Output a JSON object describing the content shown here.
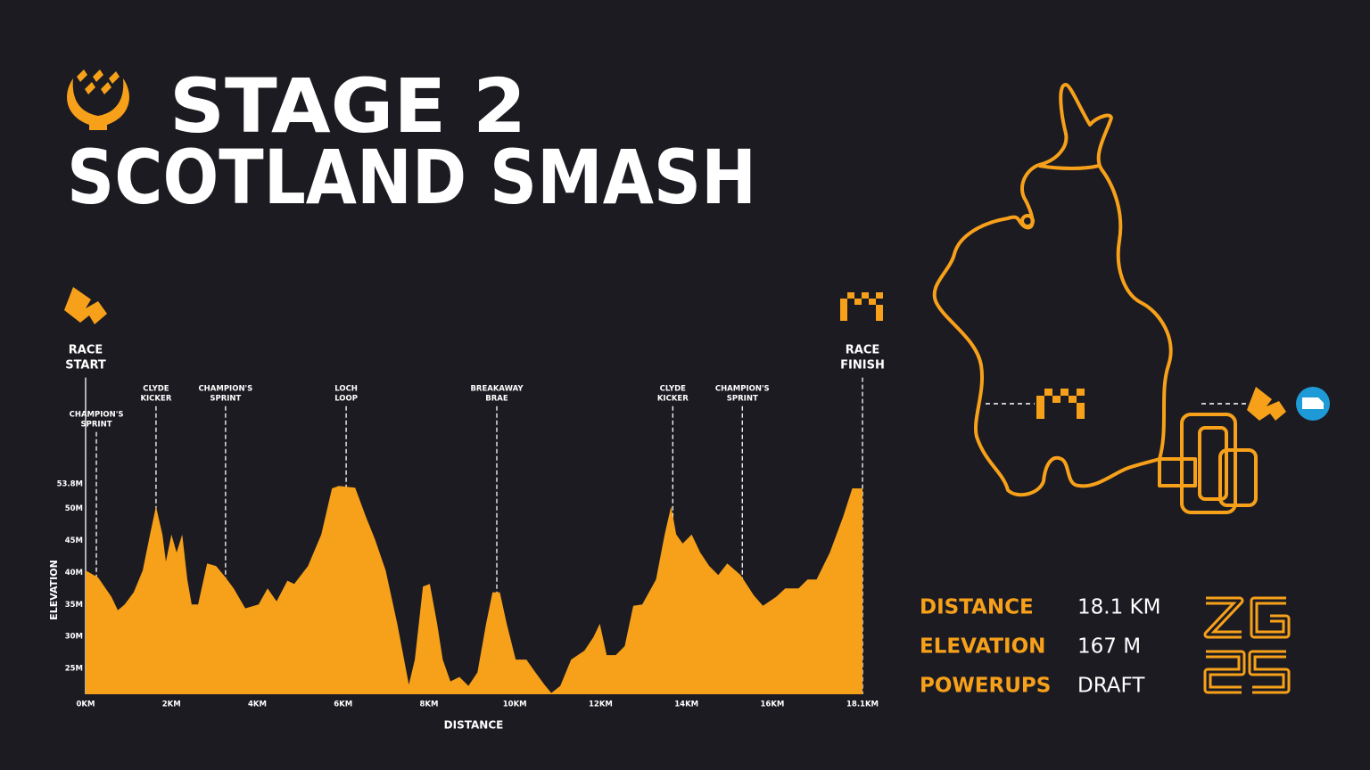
{
  "header": {
    "title": "STAGE 2",
    "subtitle": "SCOTLAND SMASH"
  },
  "chart_data": {
    "type": "area",
    "color": "#f7a11a",
    "x_label": "DISTANCE",
    "y_label": "ELEVATION",
    "x": [
      0,
      0.29,
      0.6,
      0.75,
      0.91,
      1.12,
      1.33,
      1.5,
      1.64,
      1.79,
      1.87,
      2.0,
      2.12,
      2.25,
      2.37,
      2.47,
      2.62,
      2.83,
      3.04,
      3.26,
      3.45,
      3.72,
      4.03,
      4.24,
      4.45,
      4.7,
      4.86,
      5.18,
      5.49,
      5.74,
      5.9,
      6.28,
      6.53,
      6.74,
      6.99,
      7.26,
      7.53,
      7.67,
      7.86,
      8.02,
      8.19,
      8.32,
      8.5,
      8.71,
      8.92,
      9.13,
      9.33,
      9.48,
      9.65,
      9.81,
      10.02,
      10.27,
      10.48,
      10.69,
      10.85,
      11.06,
      11.31,
      11.62,
      11.83,
      11.98,
      12.14,
      12.35,
      12.56,
      12.76,
      12.97,
      13.29,
      13.49,
      13.64,
      13.76,
      13.91,
      14.12,
      14.32,
      14.53,
      14.74,
      14.95,
      15.26,
      15.57,
      15.78,
      16.09,
      16.3,
      16.61,
      16.82,
      17.03,
      17.34,
      17.65,
      17.86,
      18.1
    ],
    "values": [
      40.3,
      39.2,
      36.2,
      34.1,
      35.0,
      36.9,
      40.3,
      45.9,
      50.3,
      45.9,
      41.7,
      45.9,
      43.1,
      45.9,
      38.9,
      35.0,
      35.0,
      41.4,
      41.0,
      39.2,
      37.5,
      34.4,
      35.0,
      37.5,
      35.5,
      38.7,
      38.2,
      41.0,
      45.9,
      53.1,
      53.5,
      53.2,
      48.7,
      45.2,
      40.3,
      32.0,
      22.5,
      26.4,
      37.8,
      38.2,
      32.0,
      26.4,
      23.0,
      23.7,
      22.3,
      24.4,
      32.0,
      36.9,
      36.9,
      32.0,
      26.4,
      26.4,
      24.4,
      22.5,
      21.2,
      22.3,
      26.4,
      27.8,
      29.9,
      32.0,
      27.1,
      27.1,
      28.5,
      34.8,
      35.0,
      38.9,
      45.9,
      50.3,
      45.9,
      44.5,
      45.9,
      43.1,
      41.0,
      39.6,
      41.4,
      39.6,
      36.4,
      34.8,
      36.2,
      37.5,
      37.5,
      38.9,
      38.9,
      43.1,
      48.7,
      53.1,
      53.1
    ],
    "xlim": [
      0,
      18.1
    ],
    "xticks": [
      {
        "value": 0,
        "label": "0KM"
      },
      {
        "value": 2,
        "label": "2KM"
      },
      {
        "value": 4,
        "label": "4KM"
      },
      {
        "value": 6,
        "label": "6KM"
      },
      {
        "value": 8,
        "label": "8KM"
      },
      {
        "value": 10,
        "label": "10KM"
      },
      {
        "value": 12,
        "label": "12KM"
      },
      {
        "value": 14,
        "label": "14KM"
      },
      {
        "value": 16,
        "label": "16KM"
      },
      {
        "value": 18.1,
        "label": "18.1KM"
      }
    ],
    "ylim": [
      21,
      53.8
    ],
    "yticks": [
      {
        "value": 25,
        "label": "25M"
      },
      {
        "value": 30,
        "label": "30M"
      },
      {
        "value": 35,
        "label": "35M"
      },
      {
        "value": 40,
        "label": "40M"
      },
      {
        "value": 45,
        "label": "45M"
      },
      {
        "value": 50,
        "label": "50M"
      },
      {
        "value": 53.8,
        "label": "53.8M"
      }
    ],
    "annotations": [
      {
        "lines": [
          "RACE",
          "START"
        ],
        "x": 0
      },
      {
        "lines": [
          "CHAMPION'S",
          "SPRINT"
        ],
        "x": 0.25
      },
      {
        "lines": [
          "CLYDE",
          "KICKER"
        ],
        "x": 1.64
      },
      {
        "lines": [
          "CHAMPION'S",
          "SPRINT"
        ],
        "x": 3.26
      },
      {
        "lines": [
          "LOCH",
          "LOOP"
        ],
        "x": 6.07
      },
      {
        "lines": [
          "BREAKAWAY",
          "BRAE"
        ],
        "x": 9.58
      },
      {
        "lines": [
          "CLYDE",
          "KICKER"
        ],
        "x": 13.68
      },
      {
        "lines": [
          "CHAMPION'S",
          "SPRINT"
        ],
        "x": 15.3
      },
      {
        "lines": [
          "RACE",
          "FINISH"
        ],
        "x": 18.1
      }
    ]
  },
  "stats": [
    {
      "label": "DISTANCE",
      "value": "18.1 KM"
    },
    {
      "label": "ELEVATION",
      "value": "167 M"
    },
    {
      "label": "POWERUPS",
      "value": "DRAFT"
    }
  ]
}
